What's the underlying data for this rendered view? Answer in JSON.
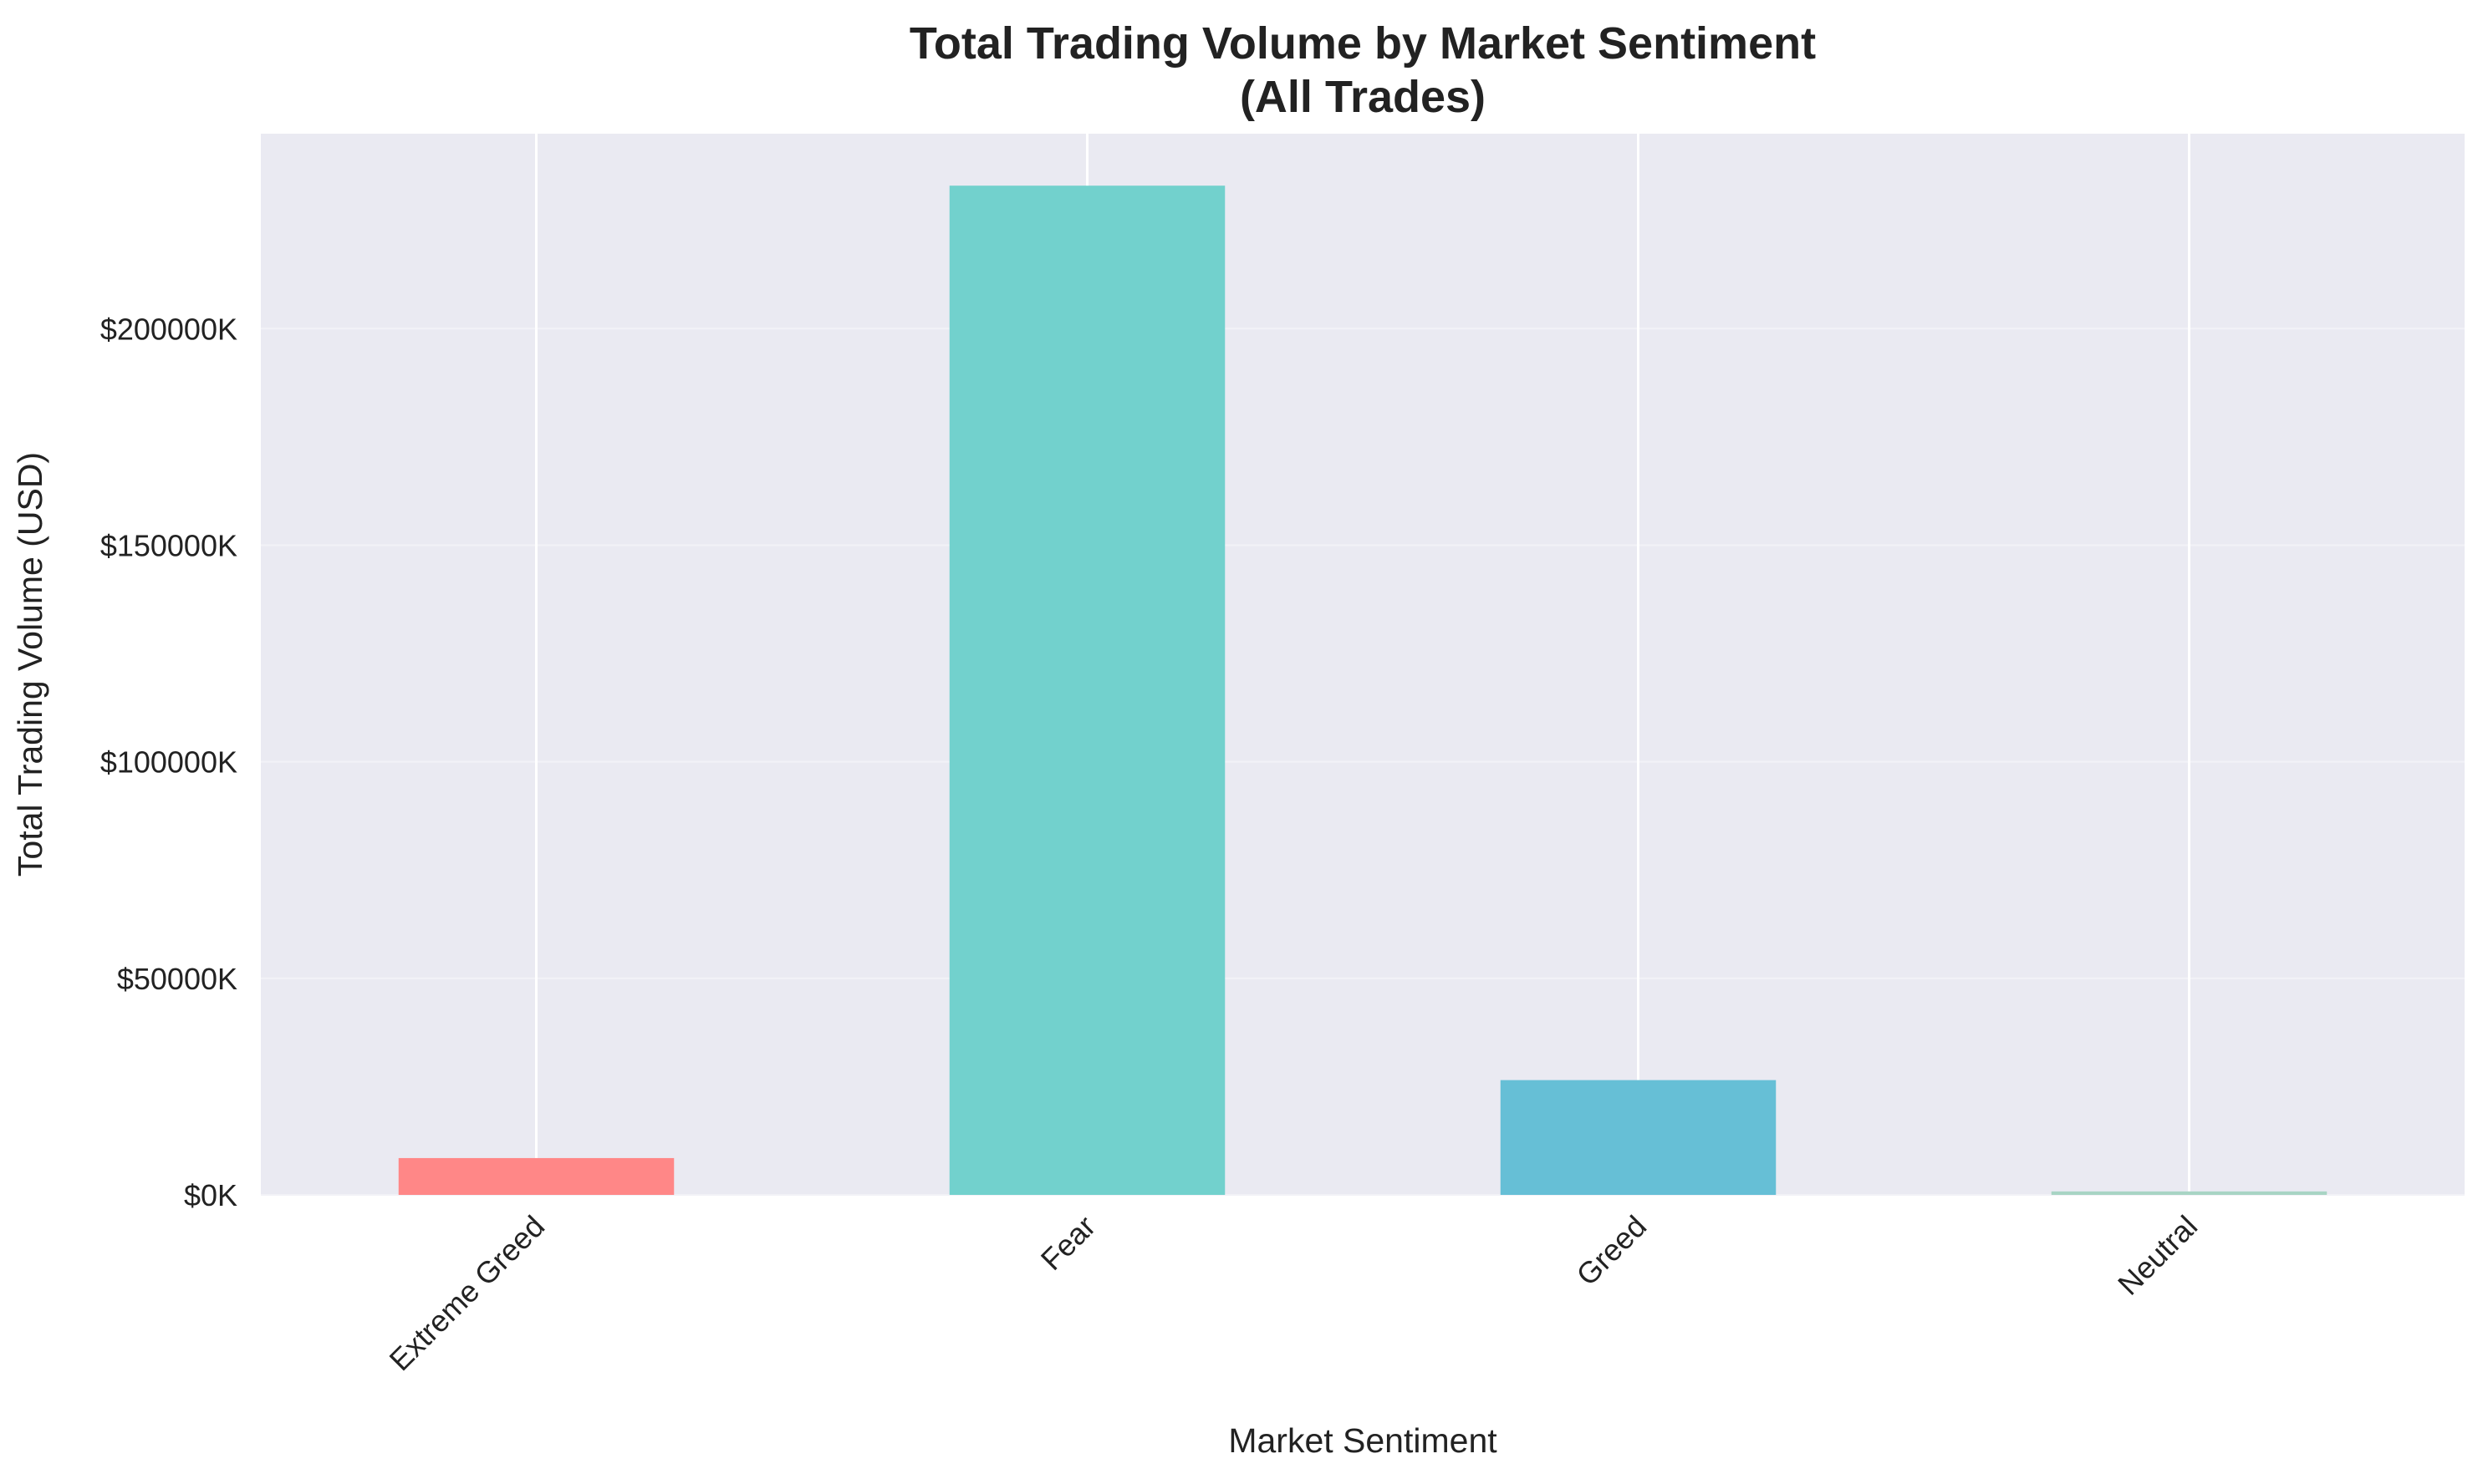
{
  "chart_data": {
    "type": "bar",
    "title": [
      "Total Trading Volume by Market Sentiment",
      "(All Trades)"
    ],
    "xlabel": "Market Sentiment",
    "ylabel": "Total Trading Volume (USD)",
    "categories": [
      "Extreme Greed",
      "Fear",
      "Greed",
      "Neutral"
    ],
    "values": [
      8500000,
      233000000,
      26500000,
      800000
    ],
    "colors": [
      "#FF8787",
      "#72D1CD",
      "#66BFD6",
      "#A8D4C4"
    ],
    "ylim": [
      0,
      245000000
    ],
    "yticks": [
      0,
      50000000,
      100000000,
      150000000,
      200000000
    ],
    "ytick_labels": [
      "$0K",
      "$50000K",
      "$100000K",
      "$150000K",
      "$200000K"
    ],
    "grid": true,
    "background": "#EAEAF2"
  }
}
